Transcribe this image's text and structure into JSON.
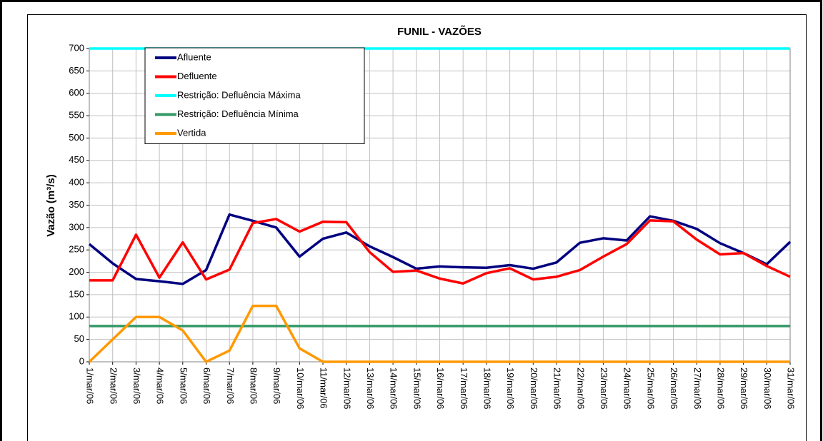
{
  "chart_data": {
    "type": "line",
    "title": "FUNIL - VAZÕES",
    "y_label": "Vazão (m³/s)",
    "categories": [
      "1/mar/06",
      "2/mar/06",
      "3/mar/06",
      "4/mar/06",
      "5/mar/06",
      "6/mar/06",
      "7/mar/06",
      "8/mar/06",
      "9/mar/06",
      "10/mar/06",
      "11/mar/06",
      "12/mar/06",
      "13/mar/06",
      "14/mar/06",
      "15/mar/06",
      "16/mar/06",
      "17/mar/06",
      "18/mar/06",
      "19/mar/06",
      "20/mar/06",
      "21/mar/06",
      "22/mar/06",
      "23/mar/06",
      "24/mar/06",
      "25/mar/06",
      "26/mar/06",
      "27/mar/06",
      "28/mar/06",
      "29/mar/06",
      "30/mar/06",
      "31/mar/06"
    ],
    "series": [
      {
        "name": "Afluente",
        "color": "#000080",
        "values": [
          263,
          220,
          185,
          180,
          174,
          205,
          329,
          315,
          300,
          235,
          275,
          289,
          258,
          234,
          208,
          213,
          211,
          210,
          216,
          208,
          222,
          266,
          276,
          271,
          325,
          315,
          297,
          265,
          243,
          218,
          268
        ]
      },
      {
        "name": "Defluente",
        "color": "#ff0000",
        "values": [
          182,
          182,
          284,
          188,
          267,
          184,
          206,
          310,
          319,
          291,
          313,
          312,
          245,
          201,
          204,
          186,
          175,
          198,
          209,
          184,
          190,
          205,
          235,
          263,
          316,
          314,
          273,
          240,
          243,
          214,
          190
        ]
      },
      {
        "name": "Restrição: Defluência Máxima",
        "color": "#00ffff",
        "values": [
          700,
          700,
          700,
          700,
          700,
          700,
          700,
          700,
          700,
          700,
          700,
          700,
          700,
          700,
          700,
          700,
          700,
          700,
          700,
          700,
          700,
          700,
          700,
          700,
          700,
          700,
          700,
          700,
          700,
          700,
          700
        ]
      },
      {
        "name": "Restrição: Defluência Mínima",
        "color": "#339966",
        "values": [
          80,
          80,
          80,
          80,
          80,
          80,
          80,
          80,
          80,
          80,
          80,
          80,
          80,
          80,
          80,
          80,
          80,
          80,
          80,
          80,
          80,
          80,
          80,
          80,
          80,
          80,
          80,
          80,
          80,
          80,
          80
        ]
      },
      {
        "name": "Vertida",
        "color": "#ff9900",
        "values": [
          0,
          50,
          100,
          100,
          70,
          0,
          25,
          125,
          125,
          30,
          0,
          0,
          0,
          0,
          0,
          0,
          0,
          0,
          0,
          0,
          0,
          0,
          0,
          0,
          0,
          0,
          0,
          0,
          0,
          0,
          0
        ]
      }
    ],
    "ylim": [
      0,
      700
    ],
    "yticks": [
      0,
      50,
      100,
      150,
      200,
      250,
      300,
      350,
      400,
      450,
      500,
      550,
      600,
      650,
      700
    ],
    "grid": true
  }
}
